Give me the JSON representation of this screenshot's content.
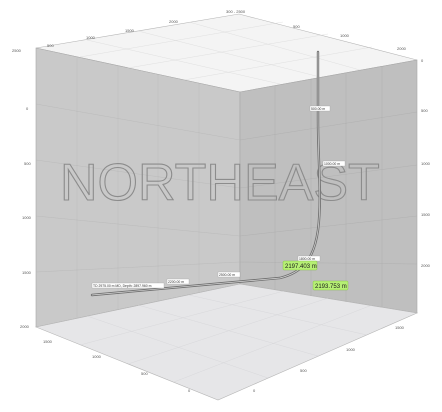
{
  "walls": {
    "north_label": "NORTH",
    "east_label": "EAST"
  },
  "colors": {
    "wall": "#c9c9c9",
    "wall_right": "#bdbdbd",
    "floor": "#e4e4e6",
    "ceiling": "#f2f2f2",
    "wellbore": "#6e6e6e",
    "highlight": "#b6ef74"
  },
  "axes": {
    "top_front_ticks": [
      "500",
      "1000",
      "1500",
      "2000",
      "2500"
    ],
    "top_back_ticks": [
      "500",
      "1000",
      "2000"
    ],
    "top_corner_label": "300 - 2500",
    "left_depth_ticks": [
      "2000",
      "1500",
      "1000",
      "500",
      "0"
    ],
    "right_depth_ticks": [
      "0",
      "500",
      "1000",
      "1500",
      "2000"
    ],
    "floor_front_ticks": [
      "1500",
      "1000",
      "500",
      "0"
    ],
    "floor_right_ticks": [
      "1500",
      "1000",
      "500",
      "0"
    ]
  },
  "wellbore": {
    "labels": {
      "upper_vertical": "500.00 m",
      "mid_vertical": "1000.00 m",
      "curve_bottom": "1800.00 m",
      "horizontal_mid": "2200.00 m",
      "horizontal_inner": "2500.00 m",
      "toe": "TD 2975.00 m MD, Depth: 2897.960 m"
    },
    "highlight_labels": [
      "2197.403 m",
      "2193.753 m"
    ]
  }
}
